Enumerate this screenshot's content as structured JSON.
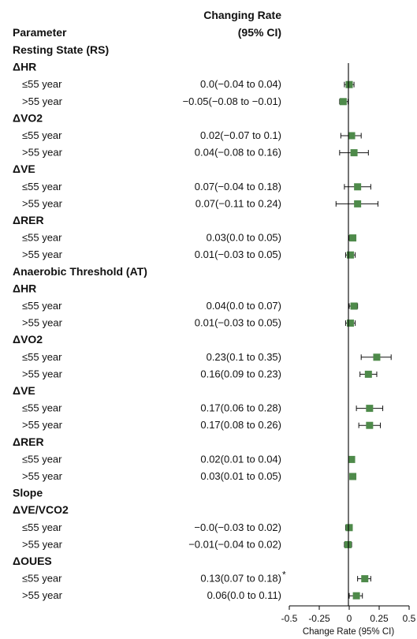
{
  "chart_data": {
    "type": "forest",
    "header_col1": "Parameter",
    "header_col2_line1": "Changing Rate",
    "header_col2_line2": "(95% CI)",
    "xlabel": "Change Rate (95% CI)",
    "xlim": [
      -0.5,
      0.5
    ],
    "xticks": [
      "-0.5",
      "-0.25",
      "0",
      "0.25",
      "0.5"
    ],
    "marker_color": "#4e8a4a",
    "rows": [
      {
        "kind": "section",
        "label": "Resting State (RS)"
      },
      {
        "kind": "group",
        "label": "ΔHR"
      },
      {
        "kind": "item",
        "label": "≤55 year",
        "ci_text": "0.0(−0.04 to 0.04)",
        "est": 0.0,
        "lo": -0.04,
        "hi": 0.04
      },
      {
        "kind": "item",
        "label": ">55 year",
        "ci_text": "−0.05(−0.08 to −0.01)",
        "est": -0.05,
        "lo": -0.08,
        "hi": -0.01
      },
      {
        "kind": "group",
        "label": "ΔVO2"
      },
      {
        "kind": "item",
        "label": "≤55 year",
        "ci_text": "0.02(−0.07 to 0.1)",
        "est": 0.02,
        "lo": -0.07,
        "hi": 0.1
      },
      {
        "kind": "item",
        "label": ">55 year",
        "ci_text": "0.04(−0.08 to 0.16)",
        "est": 0.04,
        "lo": -0.08,
        "hi": 0.16
      },
      {
        "kind": "group",
        "label": "ΔVE"
      },
      {
        "kind": "item",
        "label": "≤55 year",
        "ci_text": "0.07(−0.04 to 0.18)",
        "est": 0.07,
        "lo": -0.04,
        "hi": 0.18
      },
      {
        "kind": "item",
        "label": ">55 year",
        "ci_text": "0.07(−0.11 to 0.24)",
        "est": 0.07,
        "lo": -0.11,
        "hi": 0.24
      },
      {
        "kind": "group",
        "label": "ΔRER"
      },
      {
        "kind": "item",
        "label": "≤55 year",
        "ci_text": "0.03(0.0 to 0.05)",
        "est": 0.03,
        "lo": 0.0,
        "hi": 0.05
      },
      {
        "kind": "item",
        "label": ">55 year",
        "ci_text": "0.01(−0.03 to 0.05)",
        "est": 0.01,
        "lo": -0.03,
        "hi": 0.05
      },
      {
        "kind": "section",
        "label": "Anaerobic Threshold (AT)"
      },
      {
        "kind": "group",
        "label": "ΔHR"
      },
      {
        "kind": "item",
        "label": "≤55 year",
        "ci_text": "0.04(0.0 to 0.07)",
        "est": 0.04,
        "lo": 0.0,
        "hi": 0.07
      },
      {
        "kind": "item",
        "label": ">55 year",
        "ci_text": "0.01(−0.03 to 0.05)",
        "est": 0.01,
        "lo": -0.03,
        "hi": 0.05
      },
      {
        "kind": "group",
        "label": "ΔVO2"
      },
      {
        "kind": "item",
        "label": "≤55 year",
        "ci_text": "0.23(0.1 to 0.35)",
        "est": 0.23,
        "lo": 0.1,
        "hi": 0.35
      },
      {
        "kind": "item",
        "label": ">55 year",
        "ci_text": "0.16(0.09 to 0.23)",
        "est": 0.16,
        "lo": 0.09,
        "hi": 0.23
      },
      {
        "kind": "group",
        "label": "ΔVE"
      },
      {
        "kind": "item",
        "label": "≤55 year",
        "ci_text": "0.17(0.06 to 0.28)",
        "est": 0.17,
        "lo": 0.06,
        "hi": 0.28
      },
      {
        "kind": "item",
        "label": ">55 year",
        "ci_text": "0.17(0.08 to 0.26)",
        "est": 0.17,
        "lo": 0.08,
        "hi": 0.26
      },
      {
        "kind": "group",
        "label": "ΔRER"
      },
      {
        "kind": "item",
        "label": "≤55 year",
        "ci_text": "0.02(0.01 to 0.04)",
        "est": 0.02,
        "lo": 0.01,
        "hi": 0.04
      },
      {
        "kind": "item",
        "label": ">55 year",
        "ci_text": "0.03(0.01 to 0.05)",
        "est": 0.03,
        "lo": 0.01,
        "hi": 0.05
      },
      {
        "kind": "section",
        "label": "Slope"
      },
      {
        "kind": "group",
        "label": "ΔVE/VCO2"
      },
      {
        "kind": "item",
        "label": "≤55 year",
        "ci_text": "−0.0(−0.03 to 0.02)",
        "est": 0.0,
        "lo": -0.03,
        "hi": 0.02
      },
      {
        "kind": "item",
        "label": ">55 year",
        "ci_text": "−0.01(−0.04 to 0.02)",
        "est": -0.01,
        "lo": -0.04,
        "hi": 0.02
      },
      {
        "kind": "group",
        "label": "ΔOUES"
      },
      {
        "kind": "item",
        "label": "≤55 year",
        "ci_text": "0.13(0.07 to 0.18)",
        "note": "*",
        "est": 0.13,
        "lo": 0.07,
        "hi": 0.18
      },
      {
        "kind": "item",
        "label": ">55 year",
        "ci_text": "0.06(0.0 to 0.11)",
        "est": 0.06,
        "lo": 0.0,
        "hi": 0.11
      }
    ]
  }
}
